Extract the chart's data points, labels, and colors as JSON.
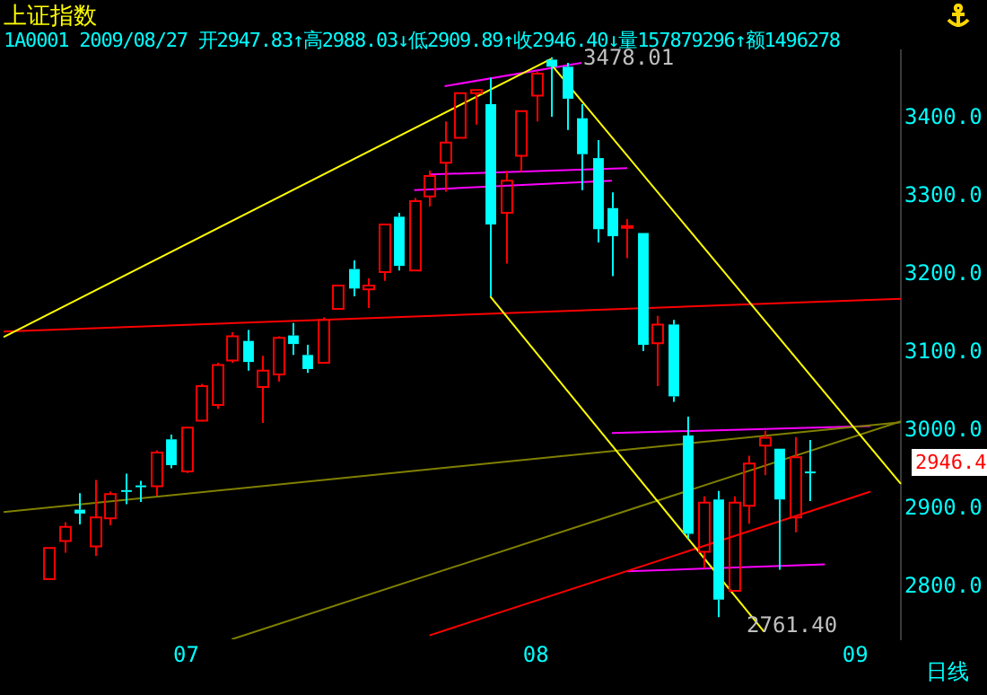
{
  "chart_data": {
    "type": "candlestick",
    "title": "上证指数",
    "subtitle": "1A0001 2009/08/27 开2947.83↑高2988.03↓低2909.89↑收2946.40↓量157879296↑额1496278",
    "categories": [
      null,
      null,
      null,
      null,
      null,
      null,
      null,
      null,
      null,
      null,
      null,
      null,
      "07",
      null,
      null,
      null,
      null,
      null,
      null,
      null,
      null,
      null,
      null,
      null,
      null,
      null,
      null,
      null,
      null,
      null,
      null,
      null,
      null,
      null,
      null,
      "08",
      null,
      null,
      null,
      null,
      null,
      null,
      null,
      null,
      null,
      null,
      null,
      null,
      null,
      null,
      null,
      null,
      null,
      null,
      null,
      null,
      "09",
      null,
      null,
      null
    ],
    "ohlc": [
      null,
      null,
      null,
      [
        2810,
        2850,
        2810,
        2850
      ],
      [
        2859,
        2883,
        2844,
        2877
      ],
      [
        2899,
        2920,
        2880,
        2894
      ],
      [
        2852,
        2937,
        2840,
        2889
      ],
      [
        2888,
        2922,
        2879,
        2919
      ],
      [
        2924,
        2945,
        2906,
        2922
      ],
      [
        2930,
        2936,
        2909,
        2929
      ],
      [
        2929,
        2975,
        2917,
        2972
      ],
      [
        2989,
        2995,
        2952,
        2956
      ],
      [
        2948,
        3005,
        2946,
        3004
      ],
      [
        3013,
        3060,
        3012,
        3057
      ],
      [
        3033,
        3087,
        3028,
        3084
      ],
      [
        3090,
        3126,
        3087,
        3121
      ],
      [
        3115,
        3129,
        3077,
        3088
      ],
      [
        3056,
        3096,
        3010,
        3077
      ],
      [
        3072,
        3121,
        3063,
        3119
      ],
      [
        3122,
        3138,
        3097,
        3111
      ],
      [
        3097,
        3110,
        3074,
        3079
      ],
      [
        3087,
        3145,
        3087,
        3142
      ],
      [
        3156,
        3187,
        3155,
        3186
      ],
      [
        3207,
        3218,
        3172,
        3182
      ],
      [
        3181,
        3195,
        3157,
        3186
      ],
      [
        3203,
        3265,
        3192,
        3264
      ],
      [
        3274,
        3279,
        3205,
        3211
      ],
      [
        3205,
        3298,
        3205,
        3294
      ],
      [
        3300,
        3333,
        3287,
        3326
      ],
      [
        3343,
        3396,
        3306,
        3369
      ],
      [
        3375,
        3433,
        3375,
        3432
      ],
      [
        3432,
        3436,
        3392,
        3436
      ],
      [
        3418,
        3452,
        3172,
        3264
      ],
      [
        3279,
        3333,
        3214,
        3320
      ],
      [
        3352,
        3410,
        3331,
        3409
      ],
      [
        3429,
        3460,
        3396,
        3457
      ],
      [
        3475,
        3478.01,
        3402,
        3466
      ],
      [
        3466,
        3471,
        3385,
        3425
      ],
      [
        3400,
        3418,
        3308,
        3354
      ],
      [
        3349,
        3372,
        3241,
        3258
      ],
      [
        3285,
        3305,
        3198,
        3249
      ],
      [
        3260,
        3271,
        3221,
        3262
      ],
      [
        3253,
        3253,
        3102,
        3110
      ],
      [
        3112,
        3147,
        3057,
        3136
      ],
      [
        3136,
        3142,
        3037,
        3044
      ],
      [
        2994,
        3018,
        2862,
        2868
      ],
      [
        2845,
        2916,
        2824,
        2908
      ],
      [
        2912,
        2923,
        2761.4,
        2784
      ],
      [
        2795,
        2916,
        2795,
        2908
      ],
      [
        2904,
        2968,
        2881,
        2958
      ],
      [
        2981,
        3000,
        2943,
        2991
      ],
      [
        2977,
        2977,
        2822,
        2912
      ],
      [
        2889,
        2992,
        2870,
        2966
      ],
      [
        2947.83,
        2988.03,
        2909.89,
        2946.4
      ],
      null,
      null,
      null,
      null,
      null,
      null
    ],
    "colors": [
      null,
      null,
      null,
      "#ff0000",
      "#ff0000",
      "#00ffff",
      "#ff0000",
      "#ff0000",
      "#00ffff",
      "#00ffff",
      "#ff0000",
      "#00ffff",
      "#ff0000",
      "#ff0000",
      "#ff0000",
      "#ff0000",
      "#00ffff",
      "#ff0000",
      "#ff0000",
      "#00ffff",
      "#00ffff",
      "#ff0000",
      "#ff0000",
      "#00ffff",
      "#ff0000",
      "#ff0000",
      "#00ffff",
      "#ff0000",
      "#ff0000",
      "#ff0000",
      "#ff0000",
      "#ff0000",
      "#00ffff",
      "#ff0000",
      "#ff0000",
      "#ff0000",
      "#00ffff",
      "#00ffff",
      "#00ffff",
      "#00ffff",
      "#00ffff",
      "#ff0000",
      "#00ffff",
      "#ff0000",
      "#00ffff",
      "#00ffff",
      "#ff0000",
      "#00ffff",
      "#ff0000",
      "#ff0000",
      "#ff0000",
      "#00ffff",
      "#ff0000",
      "#00ffff",
      null,
      null,
      null,
      null,
      null,
      null
    ],
    "series": [
      {
        "type": "line",
        "color": "#ffff00",
        "values": [
          3120,
          null,
          null,
          null,
          null,
          null,
          null,
          null,
          null,
          null,
          null,
          null,
          null,
          null,
          null,
          null,
          null,
          null,
          null,
          null,
          null,
          null,
          null,
          null,
          null,
          null,
          null,
          null,
          null,
          null,
          null,
          null,
          null,
          null,
          null,
          null,
          3476,
          null,
          null,
          null,
          null,
          null,
          null,
          null,
          null,
          null,
          null,
          null,
          null,
          null,
          null,
          null,
          null,
          null,
          null,
          null,
          null,
          null,
          null,
          null
        ]
      },
      {
        "type": "line",
        "color": "#ffff00",
        "values": [
          null,
          null,
          null,
          null,
          null,
          null,
          null,
          null,
          null,
          null,
          null,
          null,
          null,
          null,
          null,
          null,
          null,
          null,
          null,
          null,
          null,
          null,
          null,
          null,
          null,
          null,
          null,
          null,
          null,
          null,
          null,
          null,
          null,
          null,
          null,
          null,
          3469,
          null,
          null,
          null,
          null,
          null,
          null,
          null,
          null,
          null,
          null,
          null,
          null,
          null,
          null,
          null,
          null,
          null,
          null,
          null,
          null,
          null,
          null,
          2932
        ]
      },
      {
        "type": "line",
        "color": "#ffff00",
        "values": [
          null,
          null,
          null,
          null,
          null,
          null,
          null,
          null,
          null,
          null,
          null,
          null,
          null,
          null,
          null,
          null,
          null,
          null,
          null,
          null,
          null,
          null,
          null,
          null,
          null,
          null,
          null,
          null,
          null,
          null,
          null,
          null,
          3172,
          null,
          null,
          null,
          null,
          null,
          null,
          null,
          null,
          null,
          null,
          null,
          null,
          null,
          null,
          null,
          null,
          null,
          2743,
          null,
          null,
          null,
          null,
          null,
          null,
          null,
          null,
          null
        ]
      },
      {
        "type": "line",
        "color": "#ff0000",
        "values": [
          3127,
          null,
          null,
          null,
          null,
          null,
          null,
          null,
          null,
          null,
          null,
          null,
          null,
          null,
          null,
          null,
          null,
          null,
          null,
          null,
          null,
          null,
          null,
          null,
          null,
          null,
          null,
          null,
          null,
          null,
          null,
          null,
          null,
          null,
          null,
          null,
          null,
          null,
          null,
          null,
          null,
          null,
          null,
          null,
          null,
          null,
          null,
          null,
          null,
          null,
          null,
          null,
          null,
          null,
          null,
          null,
          null,
          null,
          null,
          3169
        ]
      },
      {
        "type": "line",
        "color": "#808000",
        "values": [
          2896,
          null,
          null,
          null,
          null,
          null,
          null,
          null,
          null,
          null,
          null,
          null,
          null,
          null,
          null,
          null,
          null,
          null,
          null,
          null,
          null,
          null,
          null,
          null,
          null,
          null,
          null,
          null,
          null,
          null,
          null,
          null,
          null,
          null,
          null,
          null,
          null,
          null,
          null,
          null,
          null,
          null,
          null,
          null,
          null,
          null,
          null,
          null,
          null,
          null,
          null,
          null,
          null,
          null,
          null,
          null,
          null,
          null,
          null,
          3011
        ]
      },
      {
        "type": "line",
        "color": "#808000",
        "values": [
          null,
          null,
          null,
          null,
          null,
          null,
          null,
          null,
          null,
          null,
          null,
          null,
          null,
          null,
          null,
          2733,
          null,
          null,
          null,
          null,
          null,
          null,
          null,
          null,
          null,
          null,
          null,
          null,
          null,
          null,
          null,
          null,
          null,
          null,
          null,
          null,
          null,
          null,
          null,
          null,
          null,
          null,
          null,
          null,
          null,
          null,
          null,
          null,
          null,
          null,
          null,
          null,
          null,
          null,
          null,
          null,
          null,
          null,
          null,
          3012
        ]
      },
      {
        "type": "line",
        "color": "#ff0000",
        "values": [
          null,
          null,
          null,
          null,
          null,
          null,
          null,
          null,
          null,
          null,
          null,
          null,
          null,
          null,
          null,
          null,
          null,
          null,
          null,
          null,
          null,
          null,
          null,
          null,
          null,
          null,
          null,
          null,
          2738,
          null,
          null,
          null,
          null,
          null,
          null,
          null,
          null,
          null,
          null,
          null,
          null,
          null,
          null,
          null,
          null,
          null,
          null,
          null,
          null,
          null,
          null,
          null,
          null,
          null,
          null,
          null,
          null,
          2922,
          null,
          null
        ]
      },
      {
        "type": "line",
        "color": "#ff00ff",
        "values": [
          null,
          null,
          null,
          null,
          null,
          null,
          null,
          null,
          null,
          null,
          null,
          null,
          null,
          null,
          null,
          null,
          null,
          null,
          null,
          null,
          null,
          null,
          null,
          null,
          null,
          null,
          null,
          null,
          null,
          3441,
          null,
          null,
          null,
          null,
          null,
          null,
          null,
          null,
          3471,
          null,
          null,
          null,
          null,
          null,
          null,
          null,
          null,
          null,
          null,
          null,
          null,
          null,
          null,
          null,
          null,
          null,
          null,
          null,
          null,
          null
        ]
      },
      {
        "type": "line",
        "color": "#ff00ff",
        "values": [
          null,
          null,
          null,
          null,
          null,
          null,
          null,
          null,
          null,
          null,
          null,
          null,
          null,
          null,
          null,
          null,
          null,
          null,
          null,
          null,
          null,
          null,
          null,
          null,
          null,
          null,
          null,
          3308,
          null,
          null,
          null,
          null,
          null,
          null,
          null,
          null,
          null,
          null,
          null,
          null,
          3320,
          null,
          null,
          null,
          null,
          null,
          null,
          null,
          null,
          null,
          null,
          null,
          null,
          null,
          null,
          null,
          null,
          null,
          null,
          null
        ]
      },
      {
        "type": "line",
        "color": "#ff00ff",
        "values": [
          null,
          null,
          null,
          null,
          null,
          null,
          null,
          null,
          null,
          null,
          null,
          null,
          null,
          null,
          null,
          null,
          null,
          null,
          null,
          null,
          null,
          null,
          null,
          null,
          null,
          null,
          null,
          null,
          3328,
          null,
          null,
          null,
          null,
          null,
          null,
          null,
          null,
          null,
          null,
          null,
          null,
          3336,
          null,
          null,
          null,
          null,
          null,
          null,
          null,
          null,
          null,
          null,
          null,
          null,
          null,
          null,
          null,
          null,
          null,
          null
        ]
      },
      {
        "type": "line",
        "color": "#ff00ff",
        "values": [
          null,
          null,
          null,
          null,
          null,
          null,
          null,
          null,
          null,
          null,
          null,
          null,
          null,
          null,
          null,
          null,
          null,
          null,
          null,
          null,
          null,
          null,
          null,
          null,
          null,
          null,
          null,
          null,
          null,
          null,
          null,
          null,
          null,
          null,
          null,
          null,
          null,
          null,
          null,
          null,
          2997,
          null,
          null,
          null,
          null,
          null,
          null,
          null,
          null,
          null,
          null,
          null,
          null,
          null,
          null,
          null,
          null,
          3006,
          null,
          null
        ]
      },
      {
        "type": "line",
        "color": "#ff00ff",
        "values": [
          null,
          null,
          null,
          null,
          null,
          null,
          null,
          null,
          null,
          null,
          null,
          null,
          null,
          null,
          null,
          null,
          null,
          null,
          null,
          null,
          null,
          null,
          null,
          null,
          null,
          null,
          null,
          null,
          null,
          null,
          null,
          null,
          null,
          null,
          null,
          null,
          null,
          null,
          null,
          null,
          null,
          2820,
          null,
          null,
          null,
          null,
          null,
          null,
          null,
          null,
          null,
          null,
          null,
          null,
          2829,
          null,
          null,
          null,
          null,
          null
        ]
      }
    ],
    "ylim": [
      2733,
      3487
    ],
    "yticks": [
      {
        "value": 2800,
        "label": "2800.0"
      },
      {
        "value": 2900,
        "label": "2900.0"
      },
      {
        "value": 3000,
        "label": "3000.0"
      },
      {
        "value": 3100,
        "label": "3100.0"
      },
      {
        "value": 3200,
        "label": "3200.0"
      },
      {
        "value": 3300,
        "label": "3300.0"
      },
      {
        "value": 3400,
        "label": "3400.0"
      }
    ],
    "annotations": [
      "3478.01",
      "2761.40",
      "2946.4",
      "日线"
    ],
    "grid": false,
    "legend": false
  }
}
